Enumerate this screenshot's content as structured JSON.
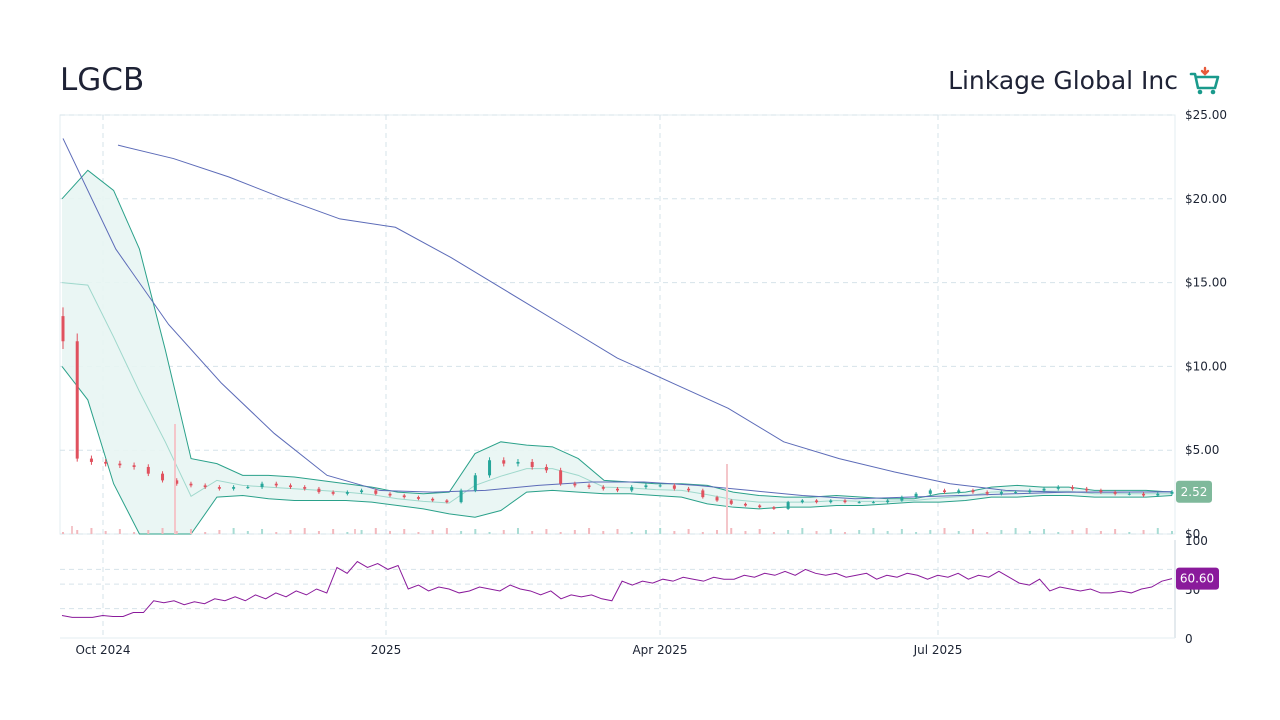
{
  "header": {
    "ticker": "LGCB",
    "company": "Linkage Global Inc"
  },
  "colors": {
    "up": "#26a69a",
    "down": "#e0515e",
    "bollinger": "#2aa18a",
    "bollinger_fill": "#e8f5f3",
    "sma": "#5c6bb8",
    "rsi": "#8a1a9b",
    "price_badge": "#7fb99b",
    "rsi_badge": "#8a1a9b",
    "grid": "#d6e3ea"
  },
  "chart_data": [
    {
      "type": "candlestick",
      "x_ticks": [
        "Oct 2024",
        "2025",
        "Apr 2025",
        "Jul 2025"
      ],
      "y_ticks": [
        "$25.00",
        "$20.00",
        "$15.00",
        "$10.00",
        "$5.00",
        "$0"
      ],
      "ylim": [
        0,
        25
      ],
      "last_price": "2.52",
      "series": [
        {
          "type": "candles",
          "values_close": [
            11.5,
            4.5,
            4.3,
            4.2,
            4.1,
            4.0,
            3.6,
            3.2,
            3.0,
            2.9,
            2.8,
            2.7,
            2.8,
            2.8,
            3.0,
            2.9,
            2.8,
            2.7,
            2.5,
            2.4,
            2.5,
            2.6,
            2.4,
            2.3,
            2.2,
            2.1,
            2.0,
            1.9,
            2.6,
            3.5,
            4.4,
            4.2,
            4.3,
            4.0,
            3.8,
            3.0,
            2.9,
            2.8,
            2.7,
            2.6,
            2.8,
            2.9,
            2.9,
            2.7,
            2.6,
            2.2,
            2.0,
            1.8,
            1.7,
            1.6,
            1.5,
            1.9,
            2.0,
            1.9,
            2.0,
            1.9,
            1.9,
            1.9,
            2.0,
            2.2,
            2.4,
            2.6,
            2.5,
            2.6,
            2.5,
            2.4,
            2.5,
            2.5,
            2.6,
            2.7,
            2.8,
            2.7,
            2.6,
            2.5,
            2.4,
            2.4,
            2.3,
            2.4,
            2.52
          ]
        },
        {
          "name": "",
          "type": "bollinger_upper",
          "values": [
            20.0,
            21.7,
            20.5,
            17.0,
            11.0,
            4.5,
            4.2,
            3.5,
            3.5,
            3.4,
            3.2,
            3.0,
            2.8,
            2.5,
            2.4,
            2.5,
            4.8,
            5.5,
            5.3,
            5.2,
            4.5,
            3.2,
            3.1,
            3.0,
            3.0,
            2.9,
            2.5,
            2.3,
            2.2,
            2.2,
            2.3,
            2.2,
            2.1,
            2.1,
            2.4,
            2.5,
            2.8,
            2.9,
            2.8,
            2.8,
            2.6,
            2.6,
            2.6,
            2.5
          ]
        },
        {
          "name": "",
          "type": "bollinger_lower",
          "values": [
            10.0,
            8.0,
            3.0,
            0.0,
            0.0,
            0.0,
            2.2,
            2.3,
            2.1,
            2.0,
            2.0,
            2.0,
            1.9,
            1.7,
            1.5,
            1.2,
            1.0,
            1.4,
            2.5,
            2.6,
            2.5,
            2.4,
            2.4,
            2.3,
            2.2,
            1.8,
            1.6,
            1.5,
            1.6,
            1.6,
            1.7,
            1.7,
            1.8,
            1.9,
            1.9,
            2.0,
            2.2,
            2.2,
            2.3,
            2.3,
            2.2,
            2.2,
            2.2,
            2.3
          ]
        },
        {
          "name": "",
          "type": "sma_long",
          "values": [
            23.2,
            22.4,
            21.3,
            20.0,
            18.8,
            18.3,
            16.5,
            14.5,
            12.5,
            10.5,
            9.0,
            7.5,
            5.5,
            4.5,
            3.7,
            3.0,
            2.6,
            2.5,
            2.5,
            2.52
          ]
        },
        {
          "name": "",
          "type": "sma_short",
          "values": [
            23.6,
            17.0,
            12.5,
            9.0,
            6.0,
            3.5,
            2.6,
            2.5,
            2.6,
            2.9,
            3.1,
            3.1,
            2.9,
            2.6,
            2.3,
            2.1,
            2.2,
            2.3,
            2.4,
            2.5,
            2.5,
            2.52
          ]
        }
      ]
    },
    {
      "type": "line",
      "title": "",
      "y_ticks": [
        "100",
        "50",
        "0"
      ],
      "ylim": [
        0,
        100
      ],
      "last_value": "60.60",
      "series": [
        {
          "name": "",
          "values": [
            23,
            21,
            21,
            21,
            23,
            22,
            22,
            26,
            26,
            38,
            36,
            38,
            34,
            37,
            35,
            40,
            38,
            42,
            38,
            44,
            40,
            46,
            42,
            48,
            44,
            50,
            46,
            72,
            66,
            78,
            72,
            76,
            70,
            74,
            50,
            54,
            48,
            52,
            50,
            46,
            48,
            52,
            50,
            48,
            54,
            50,
            48,
            44,
            48,
            40,
            44,
            42,
            44,
            40,
            38,
            58,
            54,
            58,
            56,
            60,
            58,
            62,
            60,
            58,
            62,
            60,
            60,
            64,
            62,
            66,
            64,
            68,
            64,
            70,
            66,
            64,
            66,
            62,
            64,
            66,
            60,
            64,
            62,
            66,
            64,
            60,
            64,
            62,
            66,
            60,
            64,
            62,
            68,
            62,
            56,
            54,
            60,
            48,
            52,
            50,
            48,
            50,
            46,
            46,
            48,
            46,
            50,
            52,
            58,
            60.6
          ]
        }
      ]
    }
  ]
}
